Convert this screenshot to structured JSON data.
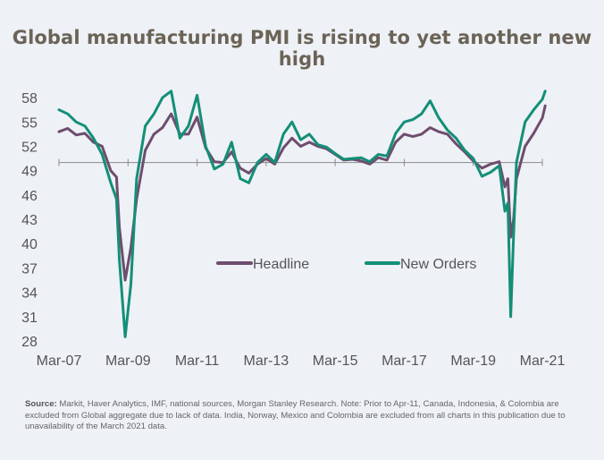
{
  "title": "Global manufacturing PMI is rising to yet another new high",
  "source_label": "Source:",
  "source_text": "Markit, Haver Analytics, IMF, national sources, Morgan Stanley Research. Note: Prior to Apr-11, Canada, Indonesia, & Colombia are excluded from Global aggregate due to lack of data. India, Norway, Mexico and Colombia are excluded from all charts in this publication due to unavailability of the March 2021 data.",
  "colors": {
    "headline": "#6e4d6e",
    "new_orders": "#138f77",
    "axis": "#8a8a8a",
    "background": "#eef1f6"
  },
  "chart_data": {
    "type": "line",
    "xlabel": "",
    "ylabel": "",
    "x_start": "Mar-07",
    "x_end": "Mar-21",
    "x_ticks": [
      "Mar-07",
      "Mar-09",
      "Mar-11",
      "Mar-13",
      "Mar-15",
      "Mar-17",
      "Mar-19",
      "Mar-21"
    ],
    "y_ticks": [
      28,
      31,
      34,
      37,
      40,
      43,
      46,
      49,
      52,
      55,
      58
    ],
    "ylim": [
      27.5,
      59.5
    ],
    "x_axis_crosses_at": 50,
    "legend": "center-right",
    "grid": false,
    "series": [
      {
        "name": "Headline",
        "color": "#6e4d6e",
        "points": [
          [
            "Mar-07",
            53.8
          ],
          [
            "Jun-07",
            54.2
          ],
          [
            "Sep-07",
            53.4
          ],
          [
            "Dec-07",
            53.6
          ],
          [
            "Mar-08",
            52.5
          ],
          [
            "Jun-08",
            52.0
          ],
          [
            "Sep-08",
            49.0
          ],
          [
            "Nov-08",
            48.2
          ],
          [
            "Dec-08",
            42.0
          ],
          [
            "Feb-09",
            35.5
          ],
          [
            "Apr-09",
            39.5
          ],
          [
            "Jun-09",
            45.5
          ],
          [
            "Sep-09",
            51.5
          ],
          [
            "Dec-09",
            53.5
          ],
          [
            "Mar-10",
            54.3
          ],
          [
            "Jun-10",
            56.0
          ],
          [
            "Sep-10",
            53.5
          ],
          [
            "Dec-10",
            53.5
          ],
          [
            "Mar-11",
            55.6
          ],
          [
            "Jun-11",
            51.8
          ],
          [
            "Sep-11",
            50.1
          ],
          [
            "Dec-11",
            50.0
          ],
          [
            "Mar-12",
            51.3
          ],
          [
            "Jun-12",
            49.3
          ],
          [
            "Sep-12",
            48.7
          ],
          [
            "Dec-12",
            49.8
          ],
          [
            "Mar-13",
            50.5
          ],
          [
            "Jun-13",
            49.8
          ],
          [
            "Sep-13",
            51.8
          ],
          [
            "Dec-13",
            53.0
          ],
          [
            "Mar-14",
            52.0
          ],
          [
            "Jun-14",
            52.5
          ],
          [
            "Sep-14",
            52.0
          ],
          [
            "Dec-14",
            51.7
          ],
          [
            "Mar-15",
            51.0
          ],
          [
            "Jun-15",
            50.3
          ],
          [
            "Sep-15",
            50.4
          ],
          [
            "Dec-15",
            50.2
          ],
          [
            "Mar-16",
            49.8
          ],
          [
            "Jun-16",
            50.6
          ],
          [
            "Sep-16",
            50.3
          ],
          [
            "Dec-16",
            52.5
          ],
          [
            "Mar-17",
            53.5
          ],
          [
            "Jun-17",
            53.2
          ],
          [
            "Sep-17",
            53.5
          ],
          [
            "Dec-17",
            54.3
          ],
          [
            "Mar-18",
            53.8
          ],
          [
            "Jun-18",
            53.5
          ],
          [
            "Sep-18",
            52.3
          ],
          [
            "Dec-18",
            51.3
          ],
          [
            "Mar-19",
            50.2
          ],
          [
            "Jun-19",
            49.3
          ],
          [
            "Sep-19",
            49.8
          ],
          [
            "Dec-19",
            50.1
          ],
          [
            "Feb-20",
            47.0
          ],
          [
            "Mar-20",
            48.0
          ],
          [
            "Apr-20",
            40.8
          ],
          [
            "May-20",
            43.0
          ],
          [
            "Jun-20",
            48.0
          ],
          [
            "Sep-20",
            52.0
          ],
          [
            "Dec-20",
            53.6
          ],
          [
            "Mar-21",
            55.5
          ],
          [
            "Apr-21",
            57.0
          ]
        ]
      },
      {
        "name": "New Orders",
        "color": "#138f77",
        "points": [
          [
            "Mar-07",
            56.5
          ],
          [
            "Jun-07",
            56.0
          ],
          [
            "Sep-07",
            55.0
          ],
          [
            "Dec-07",
            54.5
          ],
          [
            "Mar-08",
            53.0
          ],
          [
            "Jun-08",
            51.0
          ],
          [
            "Sep-08",
            47.5
          ],
          [
            "Nov-08",
            45.5
          ],
          [
            "Dec-08",
            38.0
          ],
          [
            "Feb-09",
            28.5
          ],
          [
            "Apr-09",
            35.0
          ],
          [
            "Jun-09",
            48.0
          ],
          [
            "Sep-09",
            54.5
          ],
          [
            "Dec-09",
            56.0
          ],
          [
            "Mar-10",
            58.0
          ],
          [
            "Jun-10",
            58.8
          ],
          [
            "Sep-10",
            53.0
          ],
          [
            "Dec-10",
            54.5
          ],
          [
            "Mar-11",
            58.3
          ],
          [
            "Jun-11",
            52.0
          ],
          [
            "Sep-11",
            49.2
          ],
          [
            "Dec-11",
            49.8
          ],
          [
            "Mar-12",
            52.5
          ],
          [
            "Jun-12",
            48.0
          ],
          [
            "Sep-12",
            47.5
          ],
          [
            "Dec-12",
            50.0
          ],
          [
            "Mar-13",
            51.0
          ],
          [
            "Jun-13",
            50.0
          ],
          [
            "Sep-13",
            53.5
          ],
          [
            "Dec-13",
            55.0
          ],
          [
            "Mar-14",
            52.8
          ],
          [
            "Jun-14",
            53.5
          ],
          [
            "Sep-14",
            52.2
          ],
          [
            "Dec-14",
            51.9
          ],
          [
            "Mar-15",
            51.1
          ],
          [
            "Jun-15",
            50.4
          ],
          [
            "Sep-15",
            50.5
          ],
          [
            "Dec-15",
            50.6
          ],
          [
            "Mar-16",
            50.1
          ],
          [
            "Jun-16",
            51.0
          ],
          [
            "Sep-16",
            50.8
          ],
          [
            "Dec-16",
            53.6
          ],
          [
            "Mar-17",
            55.0
          ],
          [
            "Jun-17",
            55.3
          ],
          [
            "Sep-17",
            56.0
          ],
          [
            "Dec-17",
            57.6
          ],
          [
            "Mar-18",
            55.5
          ],
          [
            "Jun-18",
            54.0
          ],
          [
            "Sep-18",
            53.0
          ],
          [
            "Dec-18",
            51.5
          ],
          [
            "Mar-19",
            50.5
          ],
          [
            "Jun-19",
            48.3
          ],
          [
            "Sep-19",
            48.8
          ],
          [
            "Dec-19",
            49.6
          ],
          [
            "Feb-20",
            44.0
          ],
          [
            "Mar-20",
            45.0
          ],
          [
            "Apr-20",
            31.0
          ],
          [
            "May-20",
            41.0
          ],
          [
            "Jun-20",
            50.0
          ],
          [
            "Sep-20",
            55.0
          ],
          [
            "Dec-20",
            56.5
          ],
          [
            "Mar-21",
            57.8
          ],
          [
            "Apr-21",
            58.8
          ]
        ]
      }
    ]
  }
}
